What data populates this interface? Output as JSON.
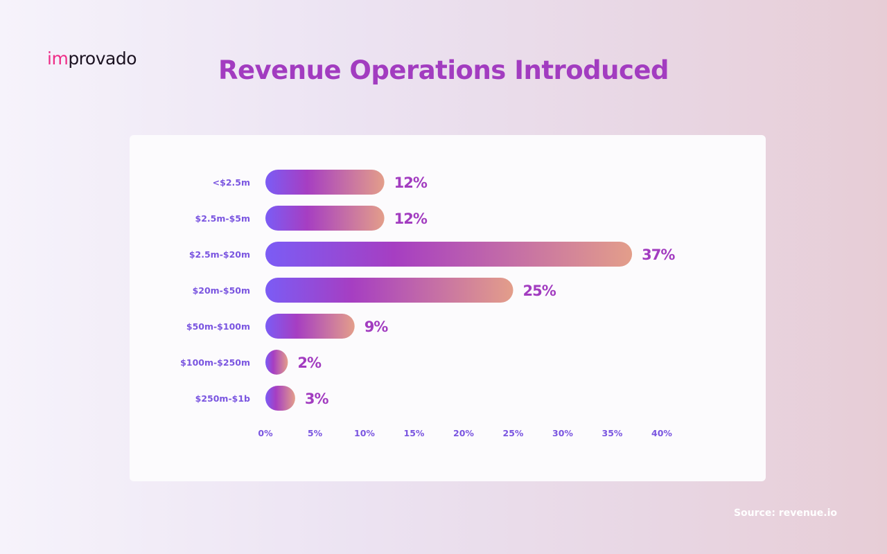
{
  "brand": {
    "logo_prefix": "im",
    "logo_rest": "provado",
    "accent_color": "#ee2c87"
  },
  "title": "Revenue Operations Introduced",
  "source": "Source: revenue.io",
  "colors": {
    "bar_start": "#7b5cf5",
    "bar_mid": "#a63ec2",
    "bar_end": "#e39e8a",
    "category_label": "#7a55e0",
    "value_label": "#a23cc0",
    "tick_label": "#7a55e0"
  },
  "chart_data": {
    "type": "bar",
    "orientation": "horizontal",
    "title": "Revenue Operations Introduced",
    "categories": [
      "<$2.5m",
      "$2.5m-$5m",
      "$2.5m-$20m",
      "$20m-$50m",
      "$50m-$100m",
      "$100m-$250m",
      "$250m-$1b"
    ],
    "values": [
      12,
      12,
      37,
      25,
      9,
      2,
      3
    ],
    "value_labels": [
      "12%",
      "12%",
      "37%",
      "25%",
      "9%",
      "2%",
      "3%"
    ],
    "xticks": [
      0,
      5,
      10,
      15,
      20,
      25,
      30,
      35,
      40
    ],
    "xtick_labels": [
      "0%",
      "5%",
      "10%",
      "15%",
      "20%",
      "25%",
      "30%",
      "35%",
      "40%"
    ],
    "xlim": [
      0,
      40
    ],
    "xlabel": "",
    "ylabel": "",
    "grid": false,
    "legend": "none"
  }
}
